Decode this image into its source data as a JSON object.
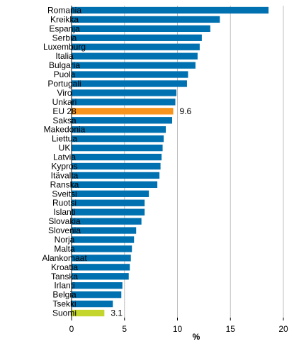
{
  "chart_data": {
    "type": "bar",
    "orientation": "horizontal",
    "categories": [
      "Romania",
      "Kreikka",
      "Espanja",
      "Serbia",
      "Luxemburg",
      "Italia",
      "Bulgaria",
      "Puola",
      "Portugali",
      "Viro",
      "Unkari",
      "EU 28",
      "Saksa",
      "Makedonia",
      "Liettua",
      "UK",
      "Latvia",
      "Kypros",
      "Itävalta",
      "Ranska",
      "Sveitsi",
      "Ruotsi",
      "Islanti",
      "Slovakia",
      "Slovenia",
      "Norja",
      "Malta",
      "Alankomaat",
      "Kroatia",
      "Tanska",
      "Irlanti",
      "Belgia",
      "Tsekki",
      "Suomi"
    ],
    "values": [
      18.6,
      14.0,
      13.1,
      12.3,
      12.1,
      11.9,
      11.7,
      11.0,
      10.9,
      9.9,
      9.8,
      9.6,
      9.5,
      8.9,
      8.7,
      8.6,
      8.5,
      8.4,
      8.3,
      8.1,
      7.3,
      6.9,
      6.9,
      6.6,
      6.1,
      5.9,
      5.7,
      5.6,
      5.5,
      5.4,
      4.8,
      4.7,
      3.9,
      3.1
    ],
    "data_labels": [
      {
        "category": "EU 28",
        "text": "9.6"
      },
      {
        "category": "Suomi",
        "text": "3.1"
      }
    ],
    "highlight_colors": {
      "EU 28": "#f7941d",
      "Suomi": "#c4d52e"
    },
    "default_color": "#0071b0",
    "xlim": [
      0,
      20
    ],
    "xticks": [
      0,
      5,
      10,
      15,
      20
    ],
    "xtick_labels": [
      "0",
      "5",
      "10",
      "15",
      "20"
    ],
    "xlabel": "%",
    "grid": "vertical",
    "grid_color": "#bfbfbf"
  }
}
